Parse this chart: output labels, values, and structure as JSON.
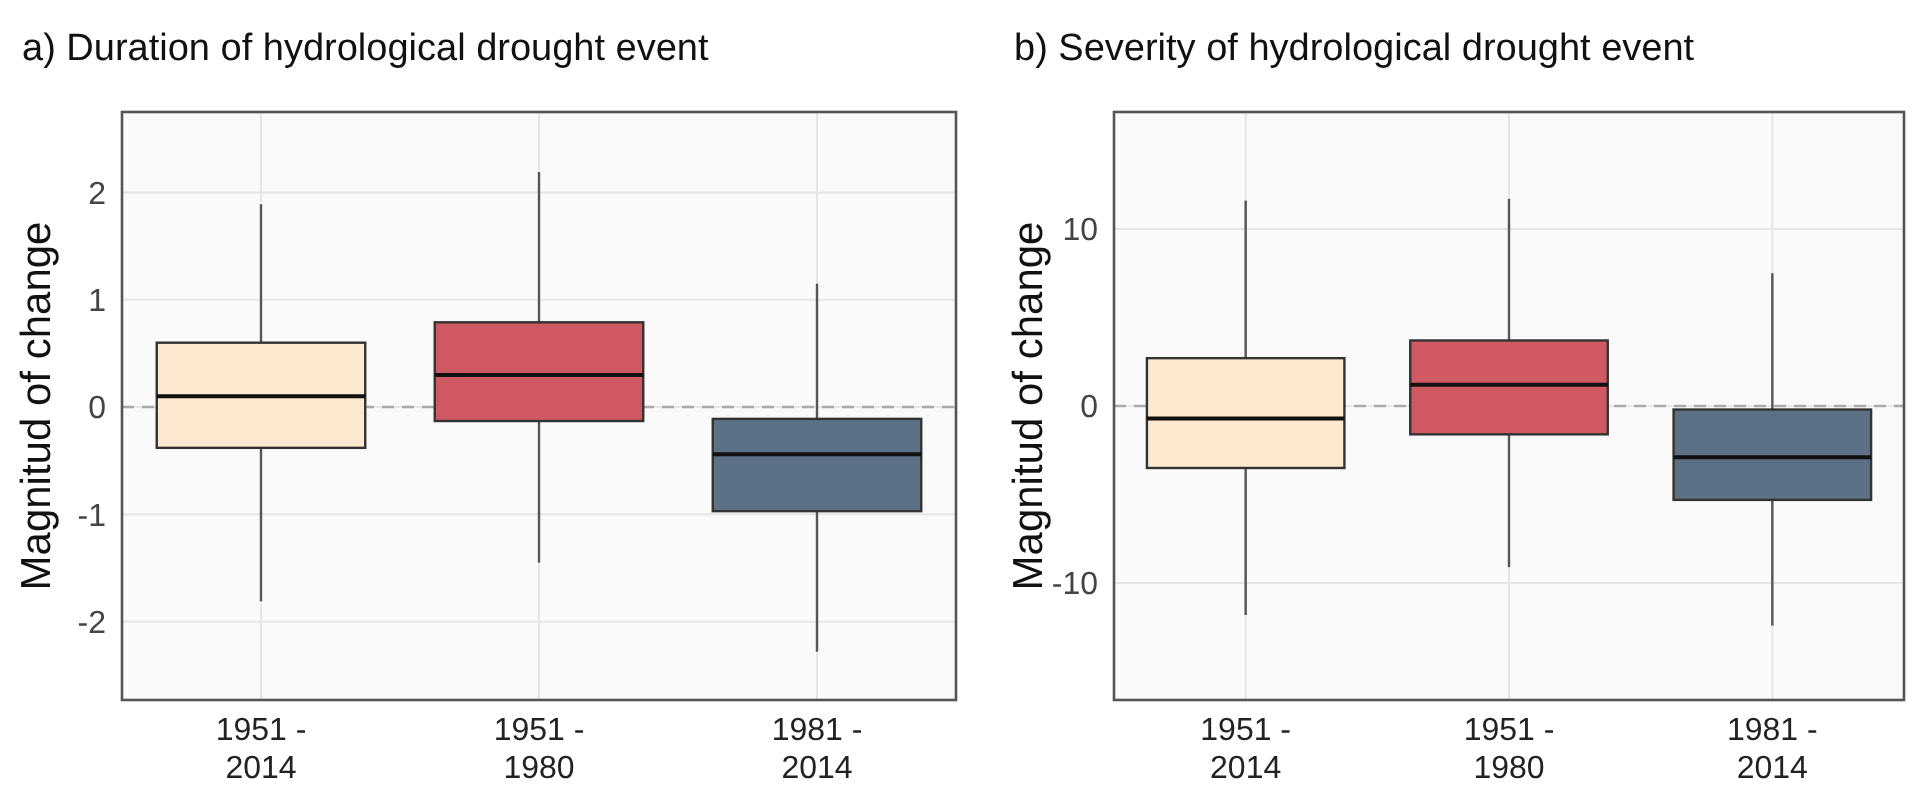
{
  "chart_data": [
    {
      "type": "box",
      "title": "a) Duration of hydrological drought event",
      "ylabel": "Magnitud of change",
      "categories": [
        "1951 - 2014",
        "1951 - 1980",
        "1981 - 2014"
      ],
      "colors": [
        "#fde9cf",
        "#d05a64",
        "#5d7186"
      ],
      "boxes": [
        {
          "low": -1.81,
          "q1": -0.38,
          "median": 0.1,
          "q3": 0.6,
          "high": 1.89
        },
        {
          "low": -1.45,
          "q1": -0.13,
          "median": 0.3,
          "q3": 0.79,
          "high": 2.19
        },
        {
          "low": -2.28,
          "q1": -0.97,
          "median": -0.44,
          "q3": -0.11,
          "high": 1.15
        }
      ],
      "ylim": [
        -2.73,
        2.75
      ],
      "yticks": [
        -2,
        -1,
        0,
        1,
        2
      ],
      "grid": true,
      "ref_lines": [
        {
          "axis": "y",
          "value": 0,
          "color": "#aaaaaa",
          "line_style": "dashed"
        }
      ]
    },
    {
      "type": "box",
      "title": "b) Severity of hydrological drought event",
      "ylabel": "Magnitud of change",
      "categories": [
        "1951 - 2014",
        "1951 - 1980",
        "1981 - 2014"
      ],
      "colors": [
        "#fde9cf",
        "#d05a64",
        "#5d7186"
      ],
      "boxes": [
        {
          "low": -11.8,
          "q1": -3.5,
          "median": -0.7,
          "q3": 2.7,
          "high": 11.6
        },
        {
          "low": -9.1,
          "q1": -1.6,
          "median": 1.2,
          "q3": 3.7,
          "high": 11.7
        },
        {
          "low": -12.4,
          "q1": -5.3,
          "median": -2.9,
          "q3": -0.2,
          "high": 7.5
        }
      ],
      "ylim": [
        -16.6,
        16.6
      ],
      "yticks": [
        -10,
        0,
        10
      ],
      "grid": true,
      "ref_lines": [
        {
          "axis": "y",
          "value": 0,
          "color": "#aaaaaa",
          "line_style": "dashed"
        }
      ]
    }
  ]
}
